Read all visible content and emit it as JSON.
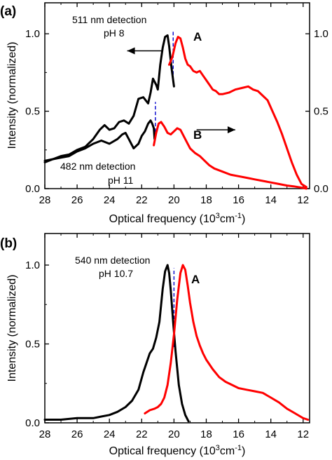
{
  "chart_data": [
    {
      "panel_label": "(a)",
      "type": "line",
      "xlabel_main": "Optical frequency (10",
      "xlabel_sup": "3",
      "xlabel_unit": "cm",
      "xlabel_sup2": "-1",
      "xlabel_close": ")",
      "ylabel": "Intensity (normalized)",
      "x_reversed": true,
      "xlim": [
        28,
        11.6
      ],
      "ylim_left": [
        0,
        1.2
      ],
      "ylim_right": [
        0,
        1.2
      ],
      "xticks": [
        "28",
        "26",
        "24",
        "22",
        "20",
        "18",
        "16",
        "14",
        "12"
      ],
      "xtick_values": [
        28,
        26,
        24,
        22,
        20,
        18,
        16,
        14,
        12
      ],
      "yticks_left": [
        "0.0",
        "0.5",
        "1.0"
      ],
      "ytick_left_values": [
        0,
        0.5,
        1.0
      ],
      "yticks_right": [
        "0.0",
        "0.5",
        "1.0"
      ],
      "ytick_right_values": [
        0,
        0.5,
        1.0
      ],
      "annotations": {
        "top_line1": "511 nm detection",
        "top_line2": "pH 8",
        "curve_A": "A",
        "bottom_line1": "482 nm detection",
        "bottom_line2": "pH 11",
        "curve_B": "B"
      },
      "series": [
        {
          "role": "A-excitation",
          "color": "#000000",
          "axis": "left",
          "x": [
            28,
            27.5,
            27,
            26.5,
            26,
            25.5,
            25,
            24.6,
            24.3,
            24,
            23.7,
            23.4,
            23.1,
            22.8,
            22.5,
            22.2,
            21.9,
            21.6,
            21.45,
            21.3,
            21.1,
            21,
            20.85,
            20.7,
            20.55,
            20.4,
            20.3,
            20.15,
            20
          ],
          "y": [
            0.17,
            0.19,
            0.21,
            0.22,
            0.25,
            0.27,
            0.32,
            0.38,
            0.41,
            0.38,
            0.39,
            0.43,
            0.44,
            0.42,
            0.47,
            0.58,
            0.59,
            0.55,
            0.62,
            0.71,
            0.67,
            0.64,
            0.8,
            0.91,
            0.98,
            0.99,
            0.92,
            0.78,
            0.66
          ]
        },
        {
          "role": "A-emission",
          "color": "#ff0000",
          "axis": "left",
          "x": [
            20.3,
            20.1,
            19.9,
            19.75,
            19.6,
            19.45,
            19.3,
            19.15,
            19,
            18.8,
            18.6,
            18.4,
            18.2,
            18,
            17.8,
            17.6,
            17.4,
            17.2,
            17,
            16.6,
            16.2,
            15.8,
            15.4,
            15.1,
            14.8,
            14.5,
            14.2,
            13.9,
            13.6,
            13.3,
            13.0,
            12.7,
            12.4,
            12.1,
            11.8
          ],
          "y": [
            0.8,
            0.85,
            0.94,
            0.98,
            0.97,
            0.91,
            0.84,
            0.8,
            0.79,
            0.76,
            0.75,
            0.76,
            0.73,
            0.7,
            0.67,
            0.64,
            0.63,
            0.61,
            0.61,
            0.62,
            0.64,
            0.65,
            0.66,
            0.64,
            0.63,
            0.6,
            0.57,
            0.5,
            0.43,
            0.35,
            0.26,
            0.17,
            0.09,
            0.03,
            0.01
          ]
        },
        {
          "role": "B-excitation",
          "color": "#000000",
          "axis": "right",
          "x": [
            28,
            27.5,
            27,
            26.5,
            26,
            25.5,
            25,
            24.5,
            24,
            23.5,
            23.2,
            23,
            22.8,
            22.5,
            22.2,
            22,
            21.8,
            21.6,
            21.45,
            21.35,
            21.25,
            21.2
          ],
          "y": [
            0.18,
            0.19,
            0.2,
            0.21,
            0.24,
            0.26,
            0.29,
            0.31,
            0.29,
            0.32,
            0.35,
            0.36,
            0.32,
            0.26,
            0.29,
            0.34,
            0.37,
            0.42,
            0.44,
            0.42,
            0.39,
            0.32
          ]
        },
        {
          "role": "B-emission",
          "color": "#ff0000",
          "axis": "right",
          "x": [
            21.25,
            21.1,
            20.95,
            20.8,
            20.6,
            20.4,
            20.2,
            20,
            19.8,
            19.6,
            19.4,
            19.2,
            19,
            18.7,
            18.4,
            18.1,
            17.8,
            17.5,
            17.0,
            16.5,
            16.0,
            15.5,
            15.0,
            14.5,
            14.0,
            13.5,
            13.0,
            12.6,
            12.3,
            12.0,
            11.8
          ],
          "y": [
            0.28,
            0.36,
            0.42,
            0.43,
            0.4,
            0.36,
            0.35,
            0.37,
            0.39,
            0.38,
            0.34,
            0.3,
            0.26,
            0.23,
            0.21,
            0.18,
            0.15,
            0.13,
            0.11,
            0.09,
            0.08,
            0.07,
            0.06,
            0.05,
            0.04,
            0.03,
            0.02,
            0.015,
            0.01,
            0.005,
            0
          ]
        }
      ],
      "guide_lines": [
        {
          "x": 20.05,
          "y_from": 0.7,
          "y_to": 1.02,
          "axis": "left",
          "color": "#0000cc",
          "style": "dashed"
        },
        {
          "x": 21.15,
          "y_from": 0.33,
          "y_to": 0.56,
          "axis": "left",
          "color": "#0000cc",
          "style": "dashed"
        }
      ],
      "arrows": [
        {
          "from": [
            20.7,
            0.89
          ],
          "to": [
            22.9,
            0.89
          ],
          "axis": "left"
        },
        {
          "from": [
            18.6,
            0.38
          ],
          "to": [
            16.2,
            0.38
          ],
          "axis": "left"
        }
      ]
    },
    {
      "panel_label": "(b)",
      "type": "line",
      "xlabel_main": "Optical frequency (10",
      "xlabel_sup": "3",
      "xlabel_unit": "cm",
      "xlabel_sup2": "-1",
      "xlabel_close": ")",
      "ylabel": "Intensity (normalized)",
      "x_reversed": true,
      "xlim": [
        28,
        11.6
      ],
      "ylim": [
        0,
        1.2
      ],
      "xticks": [
        "28",
        "26",
        "24",
        "22",
        "20",
        "18",
        "16",
        "14",
        "12"
      ],
      "xtick_values": [
        28,
        26,
        24,
        22,
        20,
        18,
        16,
        14,
        12
      ],
      "yticks": [
        "0.0",
        "0.5",
        "1.0"
      ],
      "ytick_values": [
        0,
        0.5,
        1.0
      ],
      "annotations": {
        "top_line1": "540 nm detection",
        "top_line2": "pH 10.7",
        "curve_A": "A"
      },
      "series": [
        {
          "role": "excitation",
          "color": "#000000",
          "x": [
            28,
            27,
            26,
            25,
            24.5,
            24,
            23.5,
            23,
            22.6,
            22.2,
            21.9,
            21.7,
            21.5,
            21.3,
            21.1,
            20.9,
            20.7,
            20.55,
            20.4,
            20.3,
            20.2,
            20.05,
            19.9,
            19.7,
            19.5,
            19.3,
            19.1
          ],
          "y": [
            0.02,
            0.02,
            0.03,
            0.03,
            0.04,
            0.05,
            0.07,
            0.1,
            0.14,
            0.21,
            0.32,
            0.38,
            0.44,
            0.47,
            0.54,
            0.64,
            0.85,
            0.96,
            1.0,
            0.95,
            0.84,
            0.64,
            0.45,
            0.24,
            0.12,
            0.05,
            0.01
          ]
        },
        {
          "role": "emission",
          "color": "#ff0000",
          "x": [
            21.8,
            21.5,
            21.2,
            21,
            20.8,
            20.6,
            20.4,
            20.2,
            20,
            19.8,
            19.6,
            19.45,
            19.3,
            19.15,
            19,
            18.8,
            18.6,
            18.4,
            18.2,
            18,
            17.6,
            17.2,
            16.8,
            16.4,
            16,
            15.5,
            15,
            14.5,
            14,
            13.5,
            13,
            12.5,
            12,
            11.7
          ],
          "y": [
            0.06,
            0.08,
            0.09,
            0.1,
            0.12,
            0.16,
            0.24,
            0.38,
            0.56,
            0.78,
            0.95,
            1.0,
            0.97,
            0.87,
            0.76,
            0.64,
            0.55,
            0.49,
            0.44,
            0.4,
            0.34,
            0.29,
            0.26,
            0.24,
            0.22,
            0.21,
            0.2,
            0.19,
            0.16,
            0.13,
            0.09,
            0.06,
            0.03,
            0.02
          ]
        }
      ],
      "guide_lines": [
        {
          "x": 20.0,
          "y_from": 0.48,
          "y_to": 0.98,
          "color": "#0000cc",
          "style": "dashed"
        }
      ]
    }
  ]
}
